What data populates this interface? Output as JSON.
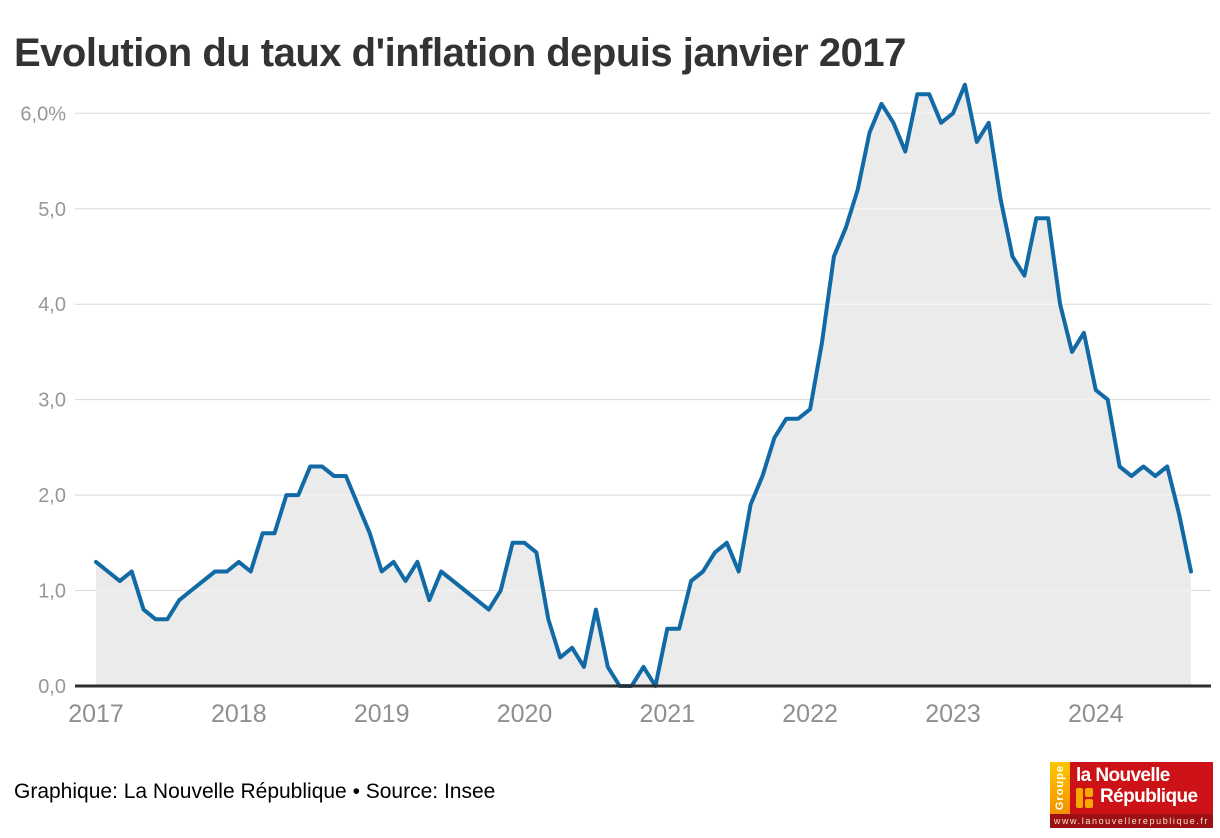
{
  "title": "Evolution du taux d'inflation depuis janvier 2017",
  "footer": {
    "text": "Graphique: La Nouvelle République • Source: Insee"
  },
  "chart_data": {
    "type": "area",
    "title": "Evolution du taux d'inflation depuis janvier 2017",
    "unit": "%",
    "frequency": "monthly",
    "x_start": "2017-01",
    "x_end": "2024-09",
    "ylim": [
      0,
      6.3
    ],
    "grid": true,
    "x_tick_labels": [
      "2017",
      "2018",
      "2019",
      "2020",
      "2021",
      "2022",
      "2023",
      "2024"
    ],
    "y_tick_labels": [
      "0,0",
      "1,0",
      "2,0",
      "3,0",
      "4,0",
      "5,0",
      "6,0%"
    ],
    "series": [
      {
        "name": "Taux d'inflation",
        "values": [
          1.3,
          1.2,
          1.1,
          1.2,
          0.8,
          0.7,
          0.7,
          0.9,
          1.0,
          1.1,
          1.2,
          1.2,
          1.3,
          1.2,
          1.6,
          1.6,
          2.0,
          2.0,
          2.3,
          2.3,
          2.2,
          2.2,
          1.9,
          1.6,
          1.2,
          1.3,
          1.1,
          1.3,
          0.9,
          1.2,
          1.1,
          1.0,
          0.9,
          0.8,
          1.0,
          1.5,
          1.5,
          1.4,
          0.7,
          0.3,
          0.4,
          0.2,
          0.8,
          0.2,
          0.0,
          0.0,
          0.2,
          0.0,
          0.6,
          0.6,
          1.1,
          1.2,
          1.4,
          1.5,
          1.2,
          1.9,
          2.2,
          2.6,
          2.8,
          2.8,
          2.9,
          3.6,
          4.5,
          4.8,
          5.2,
          5.8,
          6.1,
          5.9,
          5.6,
          6.2,
          6.2,
          5.9,
          6.0,
          6.3,
          5.7,
          5.9,
          5.1,
          4.5,
          4.3,
          4.9,
          4.9,
          4.0,
          3.5,
          3.7,
          3.1,
          3.0,
          2.3,
          2.2,
          2.3,
          2.2,
          2.3,
          1.8,
          1.2
        ]
      }
    ],
    "colors": {
      "line": "#116aa6",
      "fill": "#ebebeb",
      "grid": "#d9d9d9",
      "grid_over_fill": "rgba(255,255,255,0.65)",
      "axis": "#2e2e2e",
      "y_tick_text": "#979797",
      "x_tick_text": "#8f8f8f"
    }
  },
  "logo": {
    "group_label": "Groupe",
    "name_line1": "la Nouvelle",
    "name_line2": "République",
    "url": "www.lanouvellerepublique.fr",
    "colors": {
      "red": "#cc1217",
      "dark_red": "#9c1013",
      "orange": "#f5a800"
    }
  }
}
